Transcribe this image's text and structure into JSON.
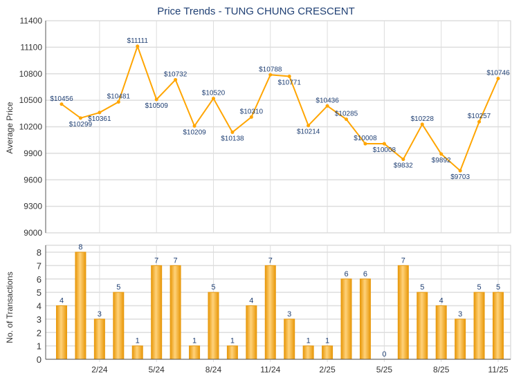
{
  "chart_data": [
    {
      "type": "line",
      "title": "Price Trends - TUNG CHUNG CRESCENT",
      "ylabel": "Average Price",
      "ylim": [
        9000,
        11400
      ],
      "yticks": [
        9000,
        9300,
        9600,
        9900,
        10200,
        10500,
        10800,
        11100,
        11400
      ],
      "grid": true,
      "values": [
        10456,
        10299,
        10361,
        10481,
        11111,
        10509,
        10732,
        10209,
        10520,
        10138,
        10310,
        10788,
        10771,
        10214,
        10436,
        10285,
        10008,
        10008,
        9832,
        10228,
        9892,
        9703,
        10257,
        10746
      ],
      "value_labels": [
        "$10456",
        "$10299",
        "$10361",
        "$10481",
        "$11111",
        "$10509",
        "$10732",
        "$10209",
        "$10520",
        "$10138",
        "$10310",
        "$10788",
        "$10771",
        "$10214",
        "$10436",
        "$10285",
        "$10008",
        "$10008",
        "$9832",
        "$10228",
        "$9892",
        "$9703",
        "$10257",
        "$10746"
      ],
      "color": "#ffa500"
    },
    {
      "type": "bar",
      "ylabel": "No. of Transactions",
      "ylim": [
        0,
        8
      ],
      "yticks": [
        0,
        1,
        2,
        3,
        4,
        5,
        6,
        7,
        8
      ],
      "grid": true,
      "values": [
        4,
        8,
        3,
        5,
        1,
        7,
        7,
        1,
        5,
        1,
        4,
        7,
        3,
        1,
        1,
        6,
        6,
        0,
        7,
        5,
        4,
        3,
        5,
        5
      ],
      "xtick_labels": [
        {
          "index": 2,
          "label": "2/24"
        },
        {
          "index": 5,
          "label": "5/24"
        },
        {
          "index": 8,
          "label": "8/24"
        },
        {
          "index": 11,
          "label": "11/24"
        },
        {
          "index": 14,
          "label": "2/25"
        },
        {
          "index": 17,
          "label": "5/25"
        },
        {
          "index": 20,
          "label": "8/25"
        },
        {
          "index": 23,
          "label": "11/25"
        }
      ],
      "color": "#f5b31f"
    }
  ]
}
